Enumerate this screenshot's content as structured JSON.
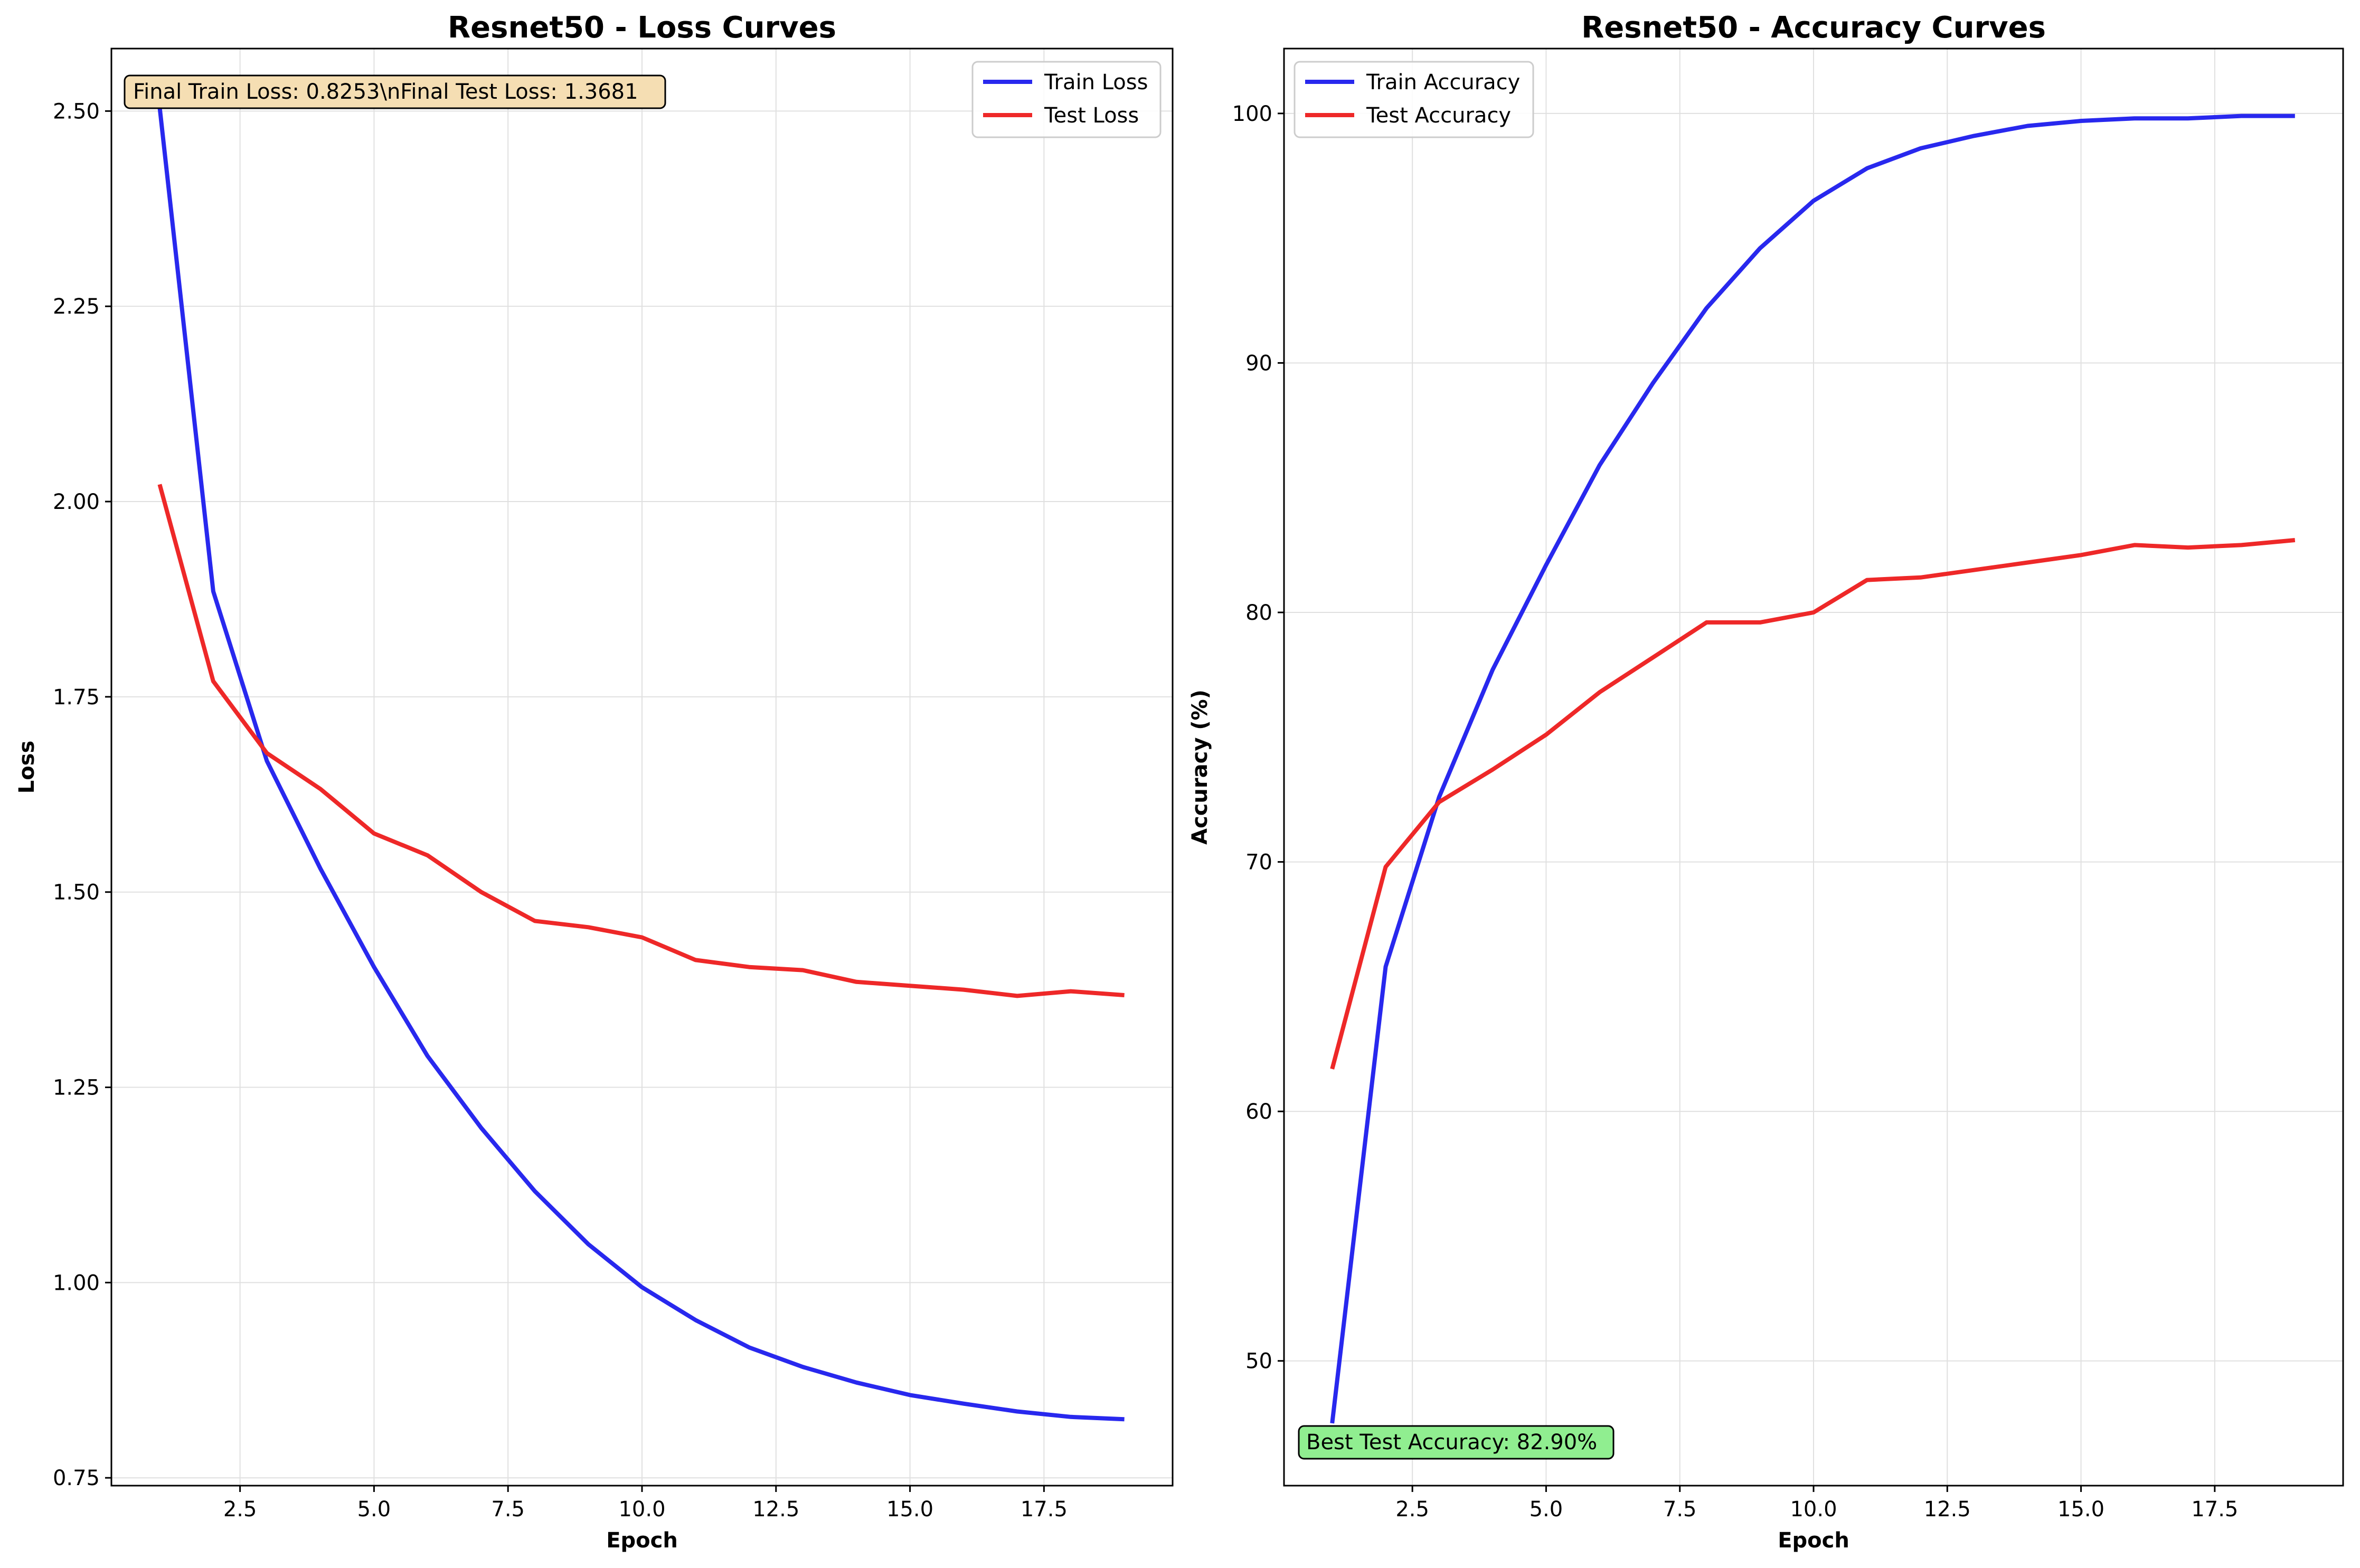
{
  "colors": {
    "train": "#2828ee",
    "test": "#ee2828",
    "grid": "#e0e0e0",
    "loss_box_fill": "#f5deb3",
    "acc_box_fill": "#90ee90"
  },
  "chart_data": [
    {
      "type": "line",
      "title": "Resnet50 - Loss Curves",
      "xlabel": "Epoch",
      "ylabel": "Loss",
      "xlim": [
        0.1,
        19.9
      ],
      "ylim": [
        0.74,
        2.58
      ],
      "xticks": [
        2.5,
        5.0,
        7.5,
        10.0,
        12.5,
        15.0,
        17.5
      ],
      "xtick_labels": [
        "2.5",
        "5.0",
        "7.5",
        "10.0",
        "12.5",
        "15.0",
        "17.5"
      ],
      "yticks": [
        0.75,
        1.0,
        1.25,
        1.5,
        1.75,
        2.0,
        2.25,
        2.5
      ],
      "ytick_labels": [
        "0.75",
        "1.00",
        "1.25",
        "1.50",
        "1.75",
        "2.00",
        "2.25",
        "2.50"
      ],
      "grid": true,
      "legend": "upper-right",
      "annotation": "Final Train Loss: 0.8253\\nFinal Test Loss: 1.3681",
      "annotation_placement": "upper-left",
      "x": [
        1,
        2,
        3,
        4,
        5,
        6,
        7,
        8,
        9,
        10,
        11,
        12,
        13,
        14,
        15,
        16,
        17,
        18,
        19
      ],
      "series": [
        {
          "name": "Train Loss",
          "color": "#2828ee",
          "values": [
            2.505,
            1.885,
            1.668,
            1.53,
            1.404,
            1.29,
            1.198,
            1.117,
            1.049,
            0.994,
            0.952,
            0.917,
            0.892,
            0.872,
            0.856,
            0.845,
            0.835,
            0.828,
            0.825
          ]
        },
        {
          "name": "Test Loss",
          "color": "#ee2828",
          "values": [
            2.022,
            1.77,
            1.678,
            1.632,
            1.575,
            1.547,
            1.5,
            1.463,
            1.455,
            1.442,
            1.413,
            1.404,
            1.4,
            1.385,
            1.38,
            1.375,
            1.367,
            1.373,
            1.368
          ]
        }
      ]
    },
    {
      "type": "line",
      "title": "Resnet50 - Accuracy Curves",
      "xlabel": "Epoch",
      "ylabel": "Accuracy (%)",
      "xlim": [
        0.1,
        19.9
      ],
      "ylim": [
        45.0,
        102.6
      ],
      "xticks": [
        2.5,
        5.0,
        7.5,
        10.0,
        12.5,
        15.0,
        17.5
      ],
      "xtick_labels": [
        "2.5",
        "5.0",
        "7.5",
        "10.0",
        "12.5",
        "15.0",
        "17.5"
      ],
      "yticks": [
        50,
        60,
        70,
        80,
        90,
        100
      ],
      "ytick_labels": [
        "50",
        "60",
        "70",
        "80",
        "90",
        "100"
      ],
      "grid": true,
      "legend": "upper-left",
      "annotation": "Best Test Accuracy: 82.90%",
      "annotation_placement": "lower-left",
      "x": [
        1,
        2,
        3,
        4,
        5,
        6,
        7,
        8,
        9,
        10,
        11,
        12,
        13,
        14,
        15,
        16,
        17,
        18,
        19
      ],
      "series": [
        {
          "name": "Train Accuracy",
          "color": "#2828ee",
          "values": [
            47.5,
            65.8,
            72.6,
            77.7,
            81.9,
            85.9,
            89.2,
            92.2,
            94.6,
            96.5,
            97.8,
            98.6,
            99.1,
            99.5,
            99.7,
            99.8,
            99.8,
            99.9,
            99.9
          ]
        },
        {
          "name": "Test Accuracy",
          "color": "#ee2828",
          "values": [
            61.7,
            69.8,
            72.4,
            73.7,
            75.1,
            76.8,
            78.2,
            79.6,
            79.6,
            80.0,
            81.3,
            81.4,
            81.7,
            82.0,
            82.3,
            82.7,
            82.6,
            82.7,
            82.9
          ]
        }
      ]
    }
  ]
}
